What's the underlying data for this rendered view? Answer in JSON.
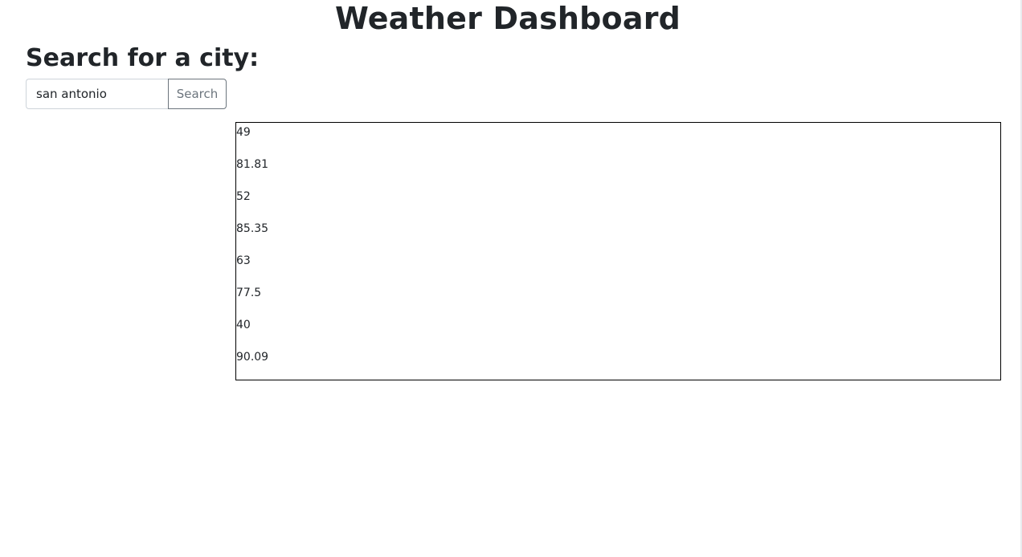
{
  "header": {
    "title": "Weather Dashboard"
  },
  "search": {
    "heading": "Search for a city:",
    "input_value": "san antonio",
    "placeholder": "",
    "button_label": "Search"
  },
  "results": {
    "values": [
      "49",
      "81.81",
      "52",
      "85.35",
      "63",
      "77.5",
      "40",
      "90.09"
    ]
  }
}
